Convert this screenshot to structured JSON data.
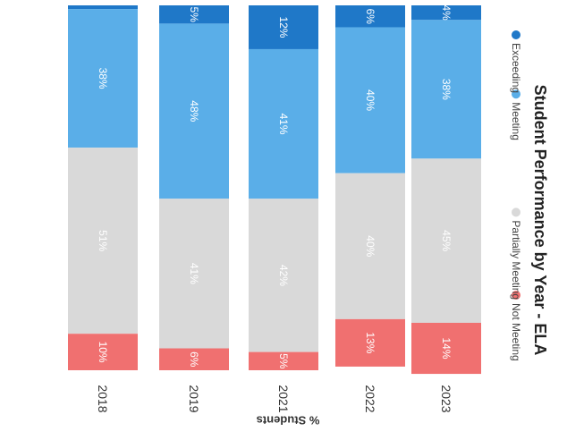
{
  "chart_data": {
    "type": "bar",
    "orientation": "horizontal-stacked",
    "stacking": "percent",
    "title": "Student Performance by Year - ELA",
    "xlabel": "% Students",
    "ylabel": "",
    "xlim": [
      0,
      100
    ],
    "categories": [
      "2018",
      "2019",
      "2021",
      "2022",
      "2023"
    ],
    "series": [
      {
        "name": "Exceeding",
        "color": "#1f78c8",
        "values": [
          1,
          5,
          12,
          6,
          4
        ],
        "labels": [
          "",
          "5%",
          "12%",
          "6%",
          "4%"
        ]
      },
      {
        "name": "Meeting",
        "color": "#5aaee8",
        "values": [
          38,
          48,
          41,
          40,
          38
        ],
        "labels": [
          "38%",
          "48%",
          "41%",
          "40%",
          "38%"
        ]
      },
      {
        "name": "Partially Meeting",
        "color": "#d9d9d9",
        "values": [
          51,
          41,
          42,
          40,
          45
        ],
        "labels": [
          "51%",
          "41%",
          "42%",
          "40%",
          "45%"
        ]
      },
      {
        "name": "Not Meeting",
        "color": "#f07070",
        "values": [
          10,
          6,
          5,
          13,
          14
        ],
        "labels": [
          "10%",
          "6%",
          "5%",
          "13%",
          "14%"
        ]
      }
    ],
    "legend": {
      "placement": "top",
      "order": [
        "Not Meeting",
        "Partially Meeting",
        "Meeting",
        "Exceeding"
      ]
    },
    "grid": false
  }
}
